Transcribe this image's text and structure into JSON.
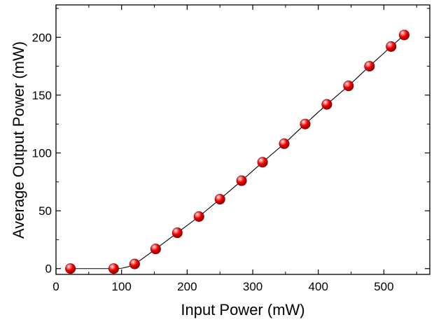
{
  "chart_data": {
    "type": "scatter",
    "xlabel": "Input Power (mW)",
    "ylabel": "Average Output Power (mW)",
    "xlim": [
      0,
      570
    ],
    "ylim": [
      -5,
      228
    ],
    "xticks": [
      0,
      100,
      200,
      300,
      400,
      500
    ],
    "yticks": [
      0,
      50,
      100,
      150,
      200
    ],
    "grid": false,
    "series": [
      {
        "marker": "sphere",
        "color": "#e00000",
        "x": [
          22,
          88,
          120,
          152,
          185,
          218,
          250,
          283,
          315,
          348,
          380,
          413,
          446,
          478,
          511,
          531
        ],
        "y": [
          0,
          0,
          4,
          17,
          31,
          45,
          60,
          76,
          92,
          108,
          125,
          142,
          158,
          175,
          192,
          202
        ]
      }
    ],
    "fit_line": {
      "style": "thin black",
      "x": [
        22,
        88,
        100,
        110,
        120,
        130,
        140,
        152,
        185,
        218,
        250,
        283,
        315,
        348,
        380,
        413,
        446,
        478,
        511,
        531
      ],
      "y": [
        0,
        0,
        0.3,
        1.6,
        4,
        7.8,
        12,
        17,
        31,
        45,
        60,
        76,
        92,
        108,
        125,
        142,
        158,
        175,
        192,
        202
      ]
    }
  }
}
